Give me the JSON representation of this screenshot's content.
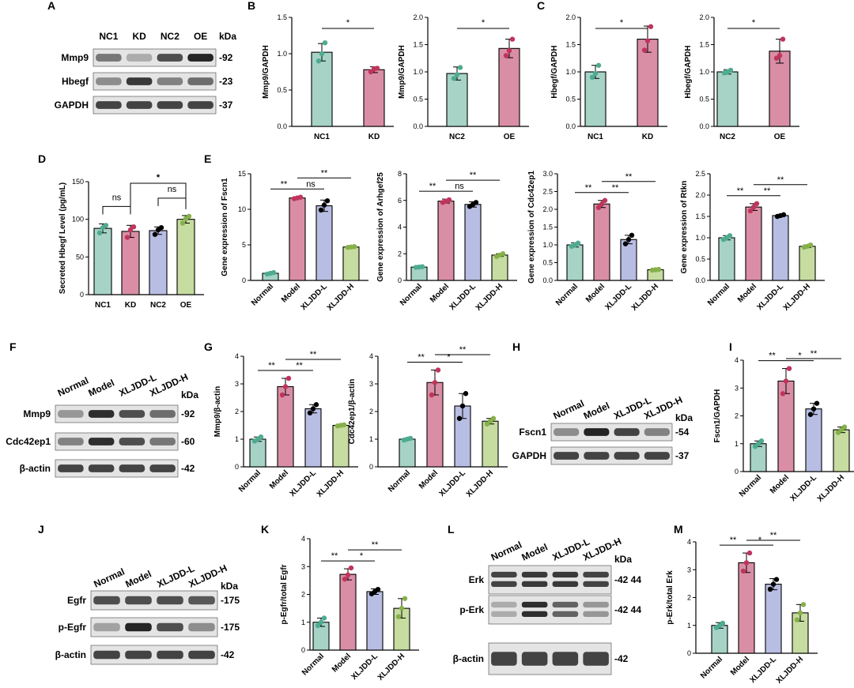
{
  "colors": {
    "teal": "#a6d3c6",
    "pink": "#d98ea6",
    "lavender": "#b8bde3",
    "green": "#c6dca0",
    "teal_pt": "#4fab90",
    "pink_pt": "#c0345c",
    "lav_pt": "#6b76c4",
    "green_pt": "#86b04a"
  },
  "blots": [
    {
      "panel": "A",
      "cols": [
        "NC1",
        "KD",
        "NC2",
        "OE"
      ],
      "unit": "kDa",
      "rotated": false,
      "rows": [
        {
          "name": "Mmp9",
          "kda": "-92",
          "intensity": [
            0.55,
            0.3,
            0.75,
            0.95
          ]
        },
        {
          "name": "Hbegf",
          "kda": "-23",
          "intensity": [
            0.45,
            0.85,
            0.5,
            0.6
          ]
        },
        {
          "name": "GAPDH",
          "kda": "-37",
          "intensity": [
            0.8,
            0.8,
            0.8,
            0.8
          ]
        }
      ]
    },
    {
      "panel": "F",
      "cols": [
        "Normal",
        "Model",
        "XLJDD-L",
        "XLJDD-H"
      ],
      "unit": "kDa",
      "rotated": true,
      "rows": [
        {
          "name": "Mmp9",
          "kda": "-92",
          "intensity": [
            0.4,
            0.9,
            0.75,
            0.6
          ]
        },
        {
          "name": "Cdc42ep1",
          "kda": "-60",
          "intensity": [
            0.5,
            0.9,
            0.75,
            0.55
          ]
        },
        {
          "name": "β-actin",
          "kda": "-42",
          "intensity": [
            0.8,
            0.8,
            0.8,
            0.8
          ]
        }
      ]
    },
    {
      "panel": "H",
      "cols": [
        "Normal",
        "Model",
        "XLJDD-L",
        "XLJDD-H"
      ],
      "unit": "kDa",
      "rotated": true,
      "rows": [
        {
          "name": "Fscn1",
          "kda": "-54",
          "intensity": [
            0.45,
            0.95,
            0.8,
            0.5
          ]
        },
        {
          "name": "GAPDH",
          "kda": "-37",
          "intensity": [
            0.8,
            0.8,
            0.8,
            0.8
          ]
        }
      ]
    },
    {
      "panel": "J",
      "cols": [
        "Normal",
        "Model",
        "XLJDD-L",
        "XLJDD-H"
      ],
      "unit": "kDa",
      "rotated": true,
      "rows": [
        {
          "name": "Egfr",
          "kda": "-175",
          "intensity": [
            0.75,
            0.75,
            0.75,
            0.7
          ]
        },
        {
          "name": "p-Egfr",
          "kda": "-175",
          "intensity": [
            0.35,
            0.95,
            0.75,
            0.45
          ]
        },
        {
          "name": "β-actin",
          "kda": "-42",
          "intensity": [
            0.8,
            0.8,
            0.8,
            0.8
          ]
        }
      ]
    },
    {
      "panel": "L",
      "cols": [
        "Normal",
        "Model",
        "XLJDD-L",
        "XLJDD-H"
      ],
      "unit": "kDa",
      "rotated": true,
      "rows": [
        {
          "name": "Erk",
          "kda": "-42 44",
          "intensity": [
            0.8,
            0.85,
            0.85,
            0.8
          ],
          "double": true
        },
        {
          "name": "p-Erk",
          "kda": "-42 44",
          "intensity": [
            0.3,
            0.9,
            0.65,
            0.4
          ],
          "double": true
        },
        {
          "name": "β-actin",
          "kda": "-42",
          "intensity": [
            0.8,
            0.8,
            0.8,
            0.8
          ]
        }
      ]
    }
  ],
  "chart_data": [
    {
      "panel": "B",
      "type": "bar",
      "ylabel": "Mmp9/GAPDH",
      "ylim": [
        0,
        1.5
      ],
      "ticks": [
        "0.0",
        "0.5",
        "1.0",
        "1.5"
      ],
      "categories": [
        "NC1",
        "KD"
      ],
      "values": [
        1.02,
        0.78
      ],
      "sd": [
        0.12,
        0.04
      ],
      "points": [
        [
          0.9,
          1.15,
          1.0
        ],
        [
          0.75,
          0.8,
          0.79
        ]
      ],
      "colors": [
        "teal",
        "pink"
      ],
      "rotated": false,
      "comparisons": [
        {
          "from": 0,
          "to": 1,
          "label": "*"
        }
      ]
    },
    {
      "panel": "B",
      "type": "bar",
      "ylabel": "Mmp9/GAPDH",
      "ylim": [
        0,
        2.0
      ],
      "ticks": [
        "0.0",
        "0.5",
        "1.0",
        "1.5",
        "2.0"
      ],
      "categories": [
        "NC2",
        "OE"
      ],
      "values": [
        0.97,
        1.43
      ],
      "sd": [
        0.12,
        0.17
      ],
      "points": [
        [
          0.88,
          1.08,
          0.95
        ],
        [
          1.3,
          1.6,
          1.39
        ]
      ],
      "colors": [
        "teal",
        "pink"
      ],
      "rotated": false,
      "comparisons": [
        {
          "from": 0,
          "to": 1,
          "label": "*"
        }
      ]
    },
    {
      "panel": "C",
      "type": "bar",
      "ylabel": "Hbegf/GAPDH",
      "ylim": [
        0,
        2.0
      ],
      "ticks": [
        "0.0",
        "0.5",
        "1.0",
        "1.5",
        "2.0"
      ],
      "categories": [
        "NC1",
        "KD"
      ],
      "values": [
        1.0,
        1.6
      ],
      "sd": [
        0.12,
        0.24
      ],
      "points": [
        [
          0.9,
          1.12,
          0.97
        ],
        [
          1.4,
          1.83,
          1.57
        ]
      ],
      "colors": [
        "teal",
        "pink"
      ],
      "rotated": false,
      "comparisons": [
        {
          "from": 0,
          "to": 1,
          "label": "*"
        }
      ]
    },
    {
      "panel": "C",
      "type": "bar",
      "ylabel": "Hbegf/GAPDH",
      "ylim": [
        0,
        2.0
      ],
      "ticks": [
        "0.0",
        "0.5",
        "1.0",
        "1.5",
        "2.0"
      ],
      "categories": [
        "NC2",
        "OE"
      ],
      "values": [
        1.0,
        1.38
      ],
      "sd": [
        0.04,
        0.22
      ],
      "points": [
        [
          0.98,
          1.03,
          1.0
        ],
        [
          1.25,
          1.6,
          1.3
        ]
      ],
      "colors": [
        "teal",
        "pink"
      ],
      "rotated": false,
      "comparisons": [
        {
          "from": 0,
          "to": 1,
          "label": "*"
        }
      ]
    },
    {
      "panel": "D",
      "type": "bar",
      "ylabel": "Secreted Hbegf Level (pg/mL)",
      "ylim": [
        0,
        150
      ],
      "ticks": [
        "0",
        "50",
        "100",
        "150"
      ],
      "categories": [
        "NC1",
        "KD",
        "NC2",
        "OE"
      ],
      "values": [
        88,
        84,
        85,
        100
      ],
      "sd": [
        6,
        8,
        5,
        5
      ],
      "points": [
        [
          82,
          92,
          89
        ],
        [
          76,
          90,
          86
        ],
        [
          80,
          89,
          86
        ],
        [
          95,
          104,
          101
        ]
      ],
      "colors": [
        "teal",
        "pink",
        "lavender",
        "green"
      ],
      "rotated": false,
      "comparisons": [
        {
          "from": 0,
          "to": 1,
          "label": "ns"
        },
        {
          "from": 2,
          "to": 3,
          "label": "ns"
        },
        {
          "from": 1,
          "to": 3,
          "label": "*",
          "big": true
        }
      ]
    },
    {
      "panel": "E",
      "type": "bar",
      "ylabel": "Gene expression of Fscn1",
      "ylim": [
        0,
        15
      ],
      "ticks": [
        "0",
        "5",
        "10",
        "15"
      ],
      "categories": [
        "Normal",
        "Model",
        "XLJDD-L",
        "XLJDD-H"
      ],
      "values": [
        1.0,
        11.6,
        10.5,
        4.7
      ],
      "sd": [
        0.15,
        0.15,
        0.8,
        0.1
      ],
      "points": [
        [
          0.9,
          1.1,
          1.0
        ],
        [
          11.5,
          11.7,
          11.6
        ],
        [
          9.9,
          11.2,
          10.6
        ],
        [
          4.65,
          4.75,
          4.7
        ]
      ],
      "colors": [
        "teal",
        "pink",
        "lavender",
        "green"
      ],
      "rotated": true,
      "comparisons": [
        {
          "from": 0,
          "to": 1,
          "label": "**"
        },
        {
          "from": 1,
          "to": 2,
          "label": "ns"
        },
        {
          "from": 1,
          "to": 3,
          "label": "**"
        }
      ]
    },
    {
      "panel": "E",
      "type": "bar",
      "ylabel": "Gene expression of Arhgef25",
      "ylim": [
        0,
        8
      ],
      "ticks": [
        "0",
        "2",
        "4",
        "6",
        "8"
      ],
      "categories": [
        "Normal",
        "Model",
        "XLJDD-L",
        "XLJDD-H"
      ],
      "values": [
        1.0,
        5.95,
        5.7,
        1.9
      ],
      "sd": [
        0.05,
        0.15,
        0.2,
        0.1
      ],
      "points": [
        [
          0.98,
          1.03,
          1.0
        ],
        [
          5.85,
          6.05,
          5.95
        ],
        [
          5.55,
          5.85,
          5.7
        ],
        [
          1.8,
          2.0,
          1.9
        ]
      ],
      "colors": [
        "teal",
        "pink",
        "lavender",
        "green"
      ],
      "rotated": true,
      "comparisons": [
        {
          "from": 0,
          "to": 1,
          "label": "**"
        },
        {
          "from": 1,
          "to": 2,
          "label": "ns"
        },
        {
          "from": 1,
          "to": 3,
          "label": "**"
        }
      ]
    },
    {
      "panel": "E",
      "type": "bar",
      "ylabel": "Gene expression of Cdc42ep1",
      "ylim": [
        0,
        3.0
      ],
      "ticks": [
        "0.0",
        "0.5",
        "1.0",
        "1.5",
        "2.0",
        "2.5",
        "3.0"
      ],
      "categories": [
        "Normal",
        "Model",
        "XLJDD-L",
        "XLJDD-H"
      ],
      "values": [
        1.0,
        2.15,
        1.15,
        0.3
      ],
      "sd": [
        0.06,
        0.1,
        0.12,
        0.02
      ],
      "points": [
        [
          0.96,
          1.05,
          1.0
        ],
        [
          2.05,
          2.25,
          2.15
        ],
        [
          1.03,
          1.27,
          1.15
        ],
        [
          0.29,
          0.31,
          0.3
        ]
      ],
      "colors": [
        "teal",
        "pink",
        "lavender",
        "green"
      ],
      "rotated": true,
      "comparisons": [
        {
          "from": 0,
          "to": 1,
          "label": "**"
        },
        {
          "from": 1,
          "to": 2,
          "label": "**"
        },
        {
          "from": 1,
          "to": 3,
          "label": "**"
        }
      ]
    },
    {
      "panel": "E",
      "type": "bar",
      "ylabel": "Gene expression of Rtkn",
      "ylim": [
        0,
        2.5
      ],
      "ticks": [
        "0.0",
        "0.5",
        "1.0",
        "1.5",
        "2.0",
        "2.5"
      ],
      "categories": [
        "Normal",
        "Model",
        "XLJDD-L",
        "XLJDD-H"
      ],
      "values": [
        1.0,
        1.72,
        1.52,
        0.8
      ],
      "sd": [
        0.05,
        0.08,
        0.02,
        0.03
      ],
      "points": [
        [
          0.96,
          1.05,
          1.0
        ],
        [
          1.63,
          1.8,
          1.72
        ],
        [
          1.5,
          1.54,
          1.52
        ],
        [
          0.78,
          0.83,
          0.8
        ]
      ],
      "colors": [
        "teal",
        "pink",
        "lavender",
        "green"
      ],
      "rotated": true,
      "comparisons": [
        {
          "from": 0,
          "to": 1,
          "label": "**"
        },
        {
          "from": 1,
          "to": 2,
          "label": "**"
        },
        {
          "from": 1,
          "to": 3,
          "label": "**"
        }
      ]
    },
    {
      "panel": "G",
      "type": "bar",
      "ylabel": "Mmp9/β-actin",
      "ylim": [
        0,
        4
      ],
      "ticks": [
        "0",
        "1",
        "2",
        "3",
        "4"
      ],
      "categories": [
        "Normal",
        "Model",
        "XLJDD-L",
        "XLJDD-H"
      ],
      "values": [
        1.0,
        2.9,
        2.1,
        1.5
      ],
      "sd": [
        0.08,
        0.3,
        0.15,
        0.02
      ],
      "points": [
        [
          0.93,
          1.08,
          1.0
        ],
        [
          2.6,
          3.2,
          2.9
        ],
        [
          1.95,
          2.25,
          2.1
        ],
        [
          1.48,
          1.52,
          1.5
        ]
      ],
      "colors": [
        "teal",
        "pink",
        "lavender",
        "green"
      ],
      "rotated": true,
      "comparisons": [
        {
          "from": 0,
          "to": 1,
          "label": "**"
        },
        {
          "from": 1,
          "to": 2,
          "label": "**"
        },
        {
          "from": 1,
          "to": 3,
          "label": "**"
        }
      ]
    },
    {
      "panel": "G",
      "type": "bar",
      "ylabel": "Cdc42ep1/β-actin",
      "ylim": [
        0,
        4
      ],
      "ticks": [
        "0",
        "1",
        "2",
        "3",
        "4"
      ],
      "categories": [
        "Normal",
        "Model",
        "XLJDD-L",
        "XLJDD-H"
      ],
      "values": [
        1.0,
        3.05,
        2.2,
        1.65
      ],
      "sd": [
        0.04,
        0.45,
        0.45,
        0.1
      ],
      "points": [
        [
          0.97,
          1.03,
          1.0
        ],
        [
          2.6,
          3.5,
          3.05
        ],
        [
          1.75,
          2.65,
          2.2
        ],
        [
          1.55,
          1.75,
          1.65
        ]
      ],
      "colors": [
        "teal",
        "pink",
        "lavender",
        "green"
      ],
      "rotated": true,
      "comparisons": [
        {
          "from": 0,
          "to": 1,
          "label": "**"
        },
        {
          "from": 1,
          "to": 2,
          "label": "*"
        },
        {
          "from": 1,
          "to": 3,
          "label": "**"
        }
      ]
    },
    {
      "panel": "I",
      "type": "bar",
      "ylabel": "Fscn1/GAPDH",
      "ylim": [
        0,
        4
      ],
      "ticks": [
        "0",
        "1",
        "2",
        "3",
        "4"
      ],
      "categories": [
        "Normal",
        "Model",
        "XLJDD-L",
        "XLJDD-H"
      ],
      "values": [
        1.0,
        3.25,
        2.25,
        1.5
      ],
      "sd": [
        0.1,
        0.45,
        0.2,
        0.1
      ],
      "points": [
        [
          0.9,
          1.1,
          1.0
        ],
        [
          2.8,
          3.7,
          3.25
        ],
        [
          2.05,
          2.45,
          2.25
        ],
        [
          1.4,
          1.6,
          1.5
        ]
      ],
      "colors": [
        "teal",
        "pink",
        "lavender",
        "green"
      ],
      "rotated": true,
      "comparisons": [
        {
          "from": 0,
          "to": 1,
          "label": "**"
        },
        {
          "from": 1,
          "to": 2,
          "label": "*"
        },
        {
          "from": 1,
          "to": 3,
          "label": "**"
        }
      ]
    },
    {
      "panel": "K",
      "type": "bar",
      "ylabel": "p-Egfr/total Egfr",
      "ylim": [
        0,
        4
      ],
      "ticks": [
        "0",
        "1",
        "2",
        "3",
        "4"
      ],
      "categories": [
        "Normal",
        "Model",
        "XLJDD-L",
        "XLJDD-H"
      ],
      "values": [
        1.0,
        2.72,
        2.1,
        1.5
      ],
      "sd": [
        0.15,
        0.2,
        0.1,
        0.35
      ],
      "points": [
        [
          0.88,
          1.15,
          1.0
        ],
        [
          2.55,
          2.95,
          2.7
        ],
        [
          2.02,
          2.18,
          2.1
        ],
        [
          1.2,
          1.85,
          1.5
        ]
      ],
      "colors": [
        "teal",
        "pink",
        "lavender",
        "green"
      ],
      "rotated": true,
      "comparisons": [
        {
          "from": 0,
          "to": 1,
          "label": "**"
        },
        {
          "from": 1,
          "to": 2,
          "label": "*"
        },
        {
          "from": 1,
          "to": 3,
          "label": "**"
        }
      ]
    },
    {
      "panel": "M",
      "type": "bar",
      "ylabel": "p-Erk/total Erk",
      "ylim": [
        0,
        4
      ],
      "ticks": [
        "0",
        "1",
        "2",
        "3",
        "4"
      ],
      "categories": [
        "Normal",
        "Model",
        "XLJDD-L",
        "XLJDD-H"
      ],
      "values": [
        1.0,
        3.25,
        2.48,
        1.45
      ],
      "sd": [
        0.1,
        0.35,
        0.2,
        0.3
      ],
      "points": [
        [
          0.92,
          1.08,
          1.0
        ],
        [
          2.95,
          3.6,
          3.25
        ],
        [
          2.3,
          2.65,
          2.48
        ],
        [
          1.2,
          1.75,
          1.45
        ]
      ],
      "colors": [
        "teal",
        "pink",
        "lavender",
        "green"
      ],
      "rotated": true,
      "comparisons": [
        {
          "from": 0,
          "to": 1,
          "label": "**"
        },
        {
          "from": 1,
          "to": 2,
          "label": "*"
        },
        {
          "from": 1,
          "to": 3,
          "label": "**"
        }
      ]
    }
  ]
}
